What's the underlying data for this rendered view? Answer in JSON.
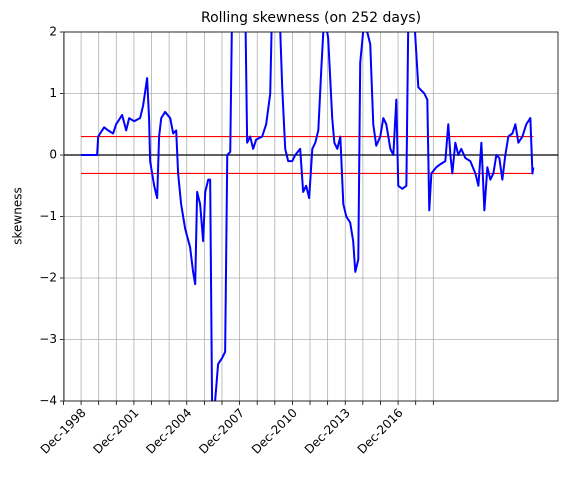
{
  "chart_data": {
    "type": "line",
    "title": "Rolling skewness (on 252 days)",
    "ylabel": "skewness",
    "xlim": [
      1997.95,
      2026.0
    ],
    "ylim": [
      -4,
      2
    ],
    "yticks": [
      {
        "value": -4,
        "label": "−4"
      },
      {
        "value": -3,
        "label": "−3"
      },
      {
        "value": -2,
        "label": "−2"
      },
      {
        "value": -1,
        "label": "−1"
      },
      0,
      1,
      2
    ],
    "xticks": [
      {
        "value": 1998.92,
        "label": "Dec-1998"
      },
      {
        "value": 2001.92,
        "label": "Dec-2001"
      },
      {
        "value": 2004.92,
        "label": "Dec-2004"
      },
      {
        "value": 2007.92,
        "label": "Dec-2007"
      },
      {
        "value": 2010.92,
        "label": "Dec-2010"
      },
      {
        "value": 2013.92,
        "label": "Dec-2013"
      },
      {
        "value": 2016.92,
        "label": "Dec-2016"
      }
    ],
    "xminorticks": [
      1997.92,
      1999.92,
      2000.92,
      2002.92,
      2003.92,
      2005.92,
      2006.92,
      2008.92,
      2009.92,
      2011.92,
      2012.92,
      2014.92,
      2015.92,
      2017.92,
      2018.92
    ],
    "grid": true,
    "reference_lines": [
      {
        "y": 0.3,
        "color": "#ff0000"
      },
      {
        "y": -0.3,
        "color": "#ff0000"
      }
    ],
    "zero_line": {
      "y": 0,
      "color": "#000000"
    },
    "series": [
      {
        "color": "#0000ff",
        "x": [
          1998.92,
          1999.83,
          1999.89,
          2000.0,
          2000.23,
          2000.45,
          2000.74,
          2000.91,
          2001.25,
          2001.48,
          2001.65,
          2001.93,
          2002.27,
          2002.44,
          2002.67,
          2002.78,
          2002.84,
          2003.07,
          2003.24,
          2003.35,
          2003.47,
          2003.69,
          2003.98,
          2004.15,
          2004.32,
          2004.43,
          2004.6,
          2004.83,
          2005.11,
          2005.28,
          2005.4,
          2005.51,
          2005.68,
          2005.85,
          2005.97,
          2006.14,
          2006.25,
          2006.36,
          2006.53,
          2006.7,
          2006.93,
          2007.1,
          2007.22,
          2007.39,
          2007.5,
          2008.24,
          2008.35,
          2008.52,
          2008.69,
          2008.86,
          2009.2,
          2009.43,
          2009.66,
          2009.77,
          2010.17,
          2010.34,
          2010.51,
          2010.68,
          2010.91,
          2011.08,
          2011.36,
          2011.53,
          2011.7,
          2011.87,
          2012.05,
          2012.22,
          2012.39,
          2012.56,
          2012.73,
          2012.95,
          2013.18,
          2013.3,
          2013.47,
          2013.64,
          2013.81,
          2013.98,
          2014.2,
          2014.37,
          2014.49,
          2014.66,
          2014.77,
          2015.0,
          2015.34,
          2015.51,
          2015.68,
          2015.91,
          2016.08,
          2016.25,
          2016.48,
          2016.65,
          2016.82,
          2016.93,
          2017.16,
          2017.39,
          2017.5,
          2017.84,
          2018.07,
          2018.41,
          2018.58,
          2018.69,
          2018.81,
          2019.09,
          2019.32,
          2019.6,
          2019.77,
          2019.89,
          2020.0,
          2020.17,
          2020.34,
          2020.51,
          2020.74,
          2021.02,
          2021.31,
          2021.48,
          2021.65,
          2021.82,
          2021.99,
          2022.16,
          2022.33,
          2022.5,
          2022.67,
          2022.84,
          2023.01,
          2023.18,
          2023.41,
          2023.58,
          2023.75,
          2023.98,
          2024.2,
          2024.43,
          2024.55,
          2024.6
        ],
        "values": [
          0,
          0,
          0.3,
          0.35,
          0.45,
          0.4,
          0.35,
          0.5,
          0.65,
          0.4,
          0.6,
          0.55,
          0.6,
          0.8,
          1.25,
          0.6,
          -0.1,
          -0.5,
          -0.7,
          0.3,
          0.6,
          0.7,
          0.6,
          0.35,
          0.4,
          -0.3,
          -0.8,
          -1.2,
          -1.5,
          -1.9,
          -2.1,
          -0.6,
          -0.8,
          -1.4,
          -0.6,
          -0.4,
          -0.4,
          -4.1,
          -4,
          -3.4,
          -3.3,
          -3.2,
          0,
          0.05,
          2.5,
          2.5,
          0.2,
          0.3,
          0.1,
          0.25,
          0.3,
          0.5,
          1.0,
          2.5,
          2.5,
          1.1,
          0.1,
          -0.1,
          -0.1,
          0.0,
          0.1,
          -0.6,
          -0.5,
          -0.7,
          0.1,
          0.2,
          0.4,
          1.4,
          2.3,
          1.9,
          0.6,
          0.2,
          0.1,
          0.3,
          -0.8,
          -1.0,
          -1.1,
          -1.4,
          -1.9,
          -1.7,
          1.5,
          2.2,
          1.8,
          0.5,
          0.15,
          0.3,
          0.6,
          0.5,
          0.1,
          0.0,
          0.9,
          -0.5,
          -0.55,
          -0.5,
          2.2,
          2.2,
          1.1,
          1.0,
          0.9,
          -0.9,
          -0.3,
          -0.2,
          -0.15,
          -0.1,
          0.5,
          0.0,
          -0.3,
          0.2,
          0.0,
          0.1,
          -0.05,
          -0.1,
          -0.3,
          -0.5,
          0.2,
          -0.9,
          -0.2,
          -0.4,
          -0.3,
          0.0,
          -0.05,
          -0.4,
          0.0,
          0.3,
          0.35,
          0.5,
          0.2,
          0.3,
          0.5,
          0.6,
          -0.3,
          -0.2
        ]
      }
    ]
  }
}
